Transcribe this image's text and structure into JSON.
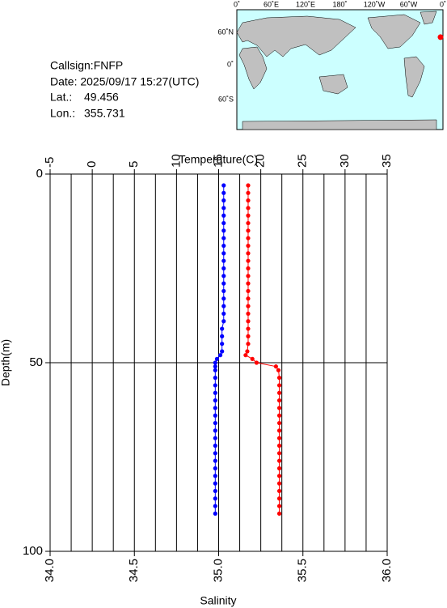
{
  "chart_data": {
    "type": "profile",
    "info": {
      "callsign": "Callsign:FNFP",
      "date": "Date:  2025/09/17 15:27(UTC)",
      "lat_label": "Lat.:",
      "lat": 49.456,
      "lon_label": "Lon.:",
      "lon": 355.731
    },
    "map": {
      "top_labels": [
        "0˚",
        "60˚E",
        "120˚E",
        "180˚",
        "120˚W",
        "60˚W",
        "0˚"
      ],
      "left_labels": [
        "60˚N",
        "0˚",
        "60˚S"
      ],
      "marker_color": "#ff0000"
    },
    "x2_label": "Temperature(C)",
    "x_label": "Salinity",
    "y_label": "Depth(m)",
    "x2lim": [
      -5,
      35
    ],
    "x2ticks": [
      -5,
      0,
      5,
      10,
      15,
      20,
      25,
      30,
      35
    ],
    "x2minorticks": [
      -2.5,
      2.5,
      7.5,
      12.5,
      17.5,
      22.5,
      27.5,
      32.5
    ],
    "xlim": [
      34,
      36
    ],
    "xticks": [
      {
        "value": 34,
        "label": "34.0"
      },
      34.5,
      {
        "value": 35,
        "label": "35.0"
      },
      35.5,
      {
        "value": 36,
        "label": "36.0"
      }
    ],
    "ylim": [
      0,
      100
    ],
    "yticks": [
      0,
      50,
      100
    ],
    "grid": true,
    "depth": [
      3,
      5,
      7,
      9,
      11,
      13,
      15,
      17,
      19,
      21,
      23,
      25,
      27,
      29,
      31,
      33,
      35,
      37,
      39,
      41,
      43,
      45,
      47,
      48,
      49,
      50,
      51,
      52,
      54,
      56,
      58,
      60,
      62,
      64,
      66,
      68,
      70,
      72,
      74,
      76,
      78,
      80,
      82,
      84,
      86,
      88,
      90
    ],
    "series": [
      {
        "name": "Temperature",
        "axis": "x2",
        "color": "#ff0000",
        "values": [
          18.5,
          18.5,
          18.5,
          18.5,
          18.5,
          18.5,
          18.5,
          18.5,
          18.5,
          18.5,
          18.5,
          18.5,
          18.5,
          18.5,
          18.5,
          18.5,
          18.5,
          18.5,
          18.5,
          18.5,
          18.5,
          18.5,
          18.4,
          18.2,
          19.0,
          19.5,
          21.8,
          22.1,
          22.2,
          22.2,
          22.2,
          22.2,
          22.2,
          22.2,
          22.2,
          22.2,
          22.2,
          22.2,
          22.2,
          22.2,
          22.2,
          22.2,
          22.2,
          22.2,
          22.2,
          22.2,
          22.2
        ]
      },
      {
        "name": "Salinity",
        "axis": "x",
        "color": "#0000ff",
        "values": [
          35.03,
          35.03,
          35.03,
          35.03,
          35.03,
          35.03,
          35.03,
          35.03,
          35.03,
          35.03,
          35.03,
          35.03,
          35.03,
          35.03,
          35.03,
          35.03,
          35.03,
          35.03,
          35.03,
          35.02,
          35.02,
          35.02,
          35.02,
          35.01,
          34.99,
          34.98,
          34.98,
          34.98,
          34.98,
          34.98,
          34.98,
          34.98,
          34.98,
          34.98,
          34.98,
          34.98,
          34.98,
          34.98,
          34.98,
          34.98,
          34.98,
          34.98,
          34.98,
          34.98,
          34.98,
          34.98,
          34.98
        ]
      }
    ]
  }
}
